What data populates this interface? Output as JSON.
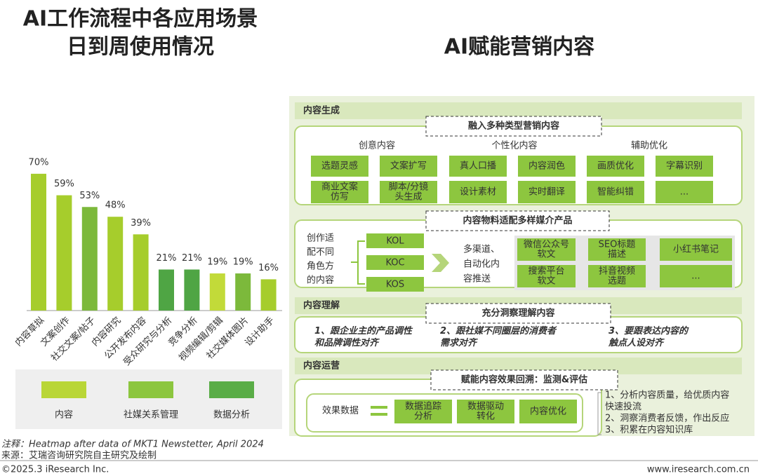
{
  "chart_data": {
    "type": "bar",
    "title": [
      "AI工作流程中各应用场景",
      "日到周使用情况"
    ],
    "categories": [
      "内容草拟",
      "文案创作",
      "社交文案/帖子",
      "内容研究",
      "公开发布内容",
      "受众研究与分析",
      "竞争分析",
      "视频编辑/剪辑",
      "社交媒体图片",
      "设计助手"
    ],
    "values": [
      70,
      59,
      53,
      48,
      39,
      21,
      21,
      19,
      19,
      16
    ],
    "value_labels": [
      "70%",
      "59%",
      "53%",
      "48%",
      "39%",
      "21%",
      "21%",
      "19%",
      "19%",
      "16%"
    ],
    "colors": [
      "#a6cd2c",
      "#a6cd2c",
      "#7cb93b",
      "#a6cd2c",
      "#a6cd2c",
      "#4fa544",
      "#4fa544",
      "#c2da39",
      "#7cb93b",
      "#a6cd2c"
    ],
    "ylim": [
      0,
      80
    ],
    "legend": [
      {
        "name": "内容",
        "color": "#b9d637"
      },
      {
        "name": "社媒关系管理",
        "color": "#8cc63f"
      },
      {
        "name": "数据分析",
        "color": "#5aad47"
      }
    ],
    "note": "注释：Heatmap after data of MKT1 Newstetter, April 2024",
    "source": "来源：艾瑞咨询研究院自主研究及绘制"
  },
  "diagram": {
    "title": "AI赋能营销内容",
    "generation": {
      "header": "内容生成",
      "callout": "融入多种类型营销内容",
      "columns": [
        "创意内容",
        "个性化内容",
        "辅助优化"
      ],
      "tags": [
        [
          "选题灵感"
        ],
        [
          "文案扩写"
        ],
        [
          "真人口播"
        ],
        [
          "内容润色"
        ],
        [
          "画质优化"
        ],
        [
          "字幕识别"
        ],
        [
          "商业文案",
          "仿写"
        ],
        [
          "脚本/分镜",
          "头生成"
        ],
        [
          "设计素材"
        ],
        [
          "实时翻译"
        ],
        [
          "智能纠错"
        ],
        [
          "..."
        ]
      ]
    },
    "adaptation": {
      "callout": "内容物料适配多样媒介产品",
      "creator": [
        "创作适",
        "配不同",
        "角色方",
        "的内容"
      ],
      "roles": [
        "KOL",
        "KOC",
        "KOS"
      ],
      "push": [
        "多渠道、",
        "自动化内",
        "容推送"
      ],
      "products": [
        [
          "微信公众号",
          "软文"
        ],
        [
          "SEO标题",
          "描述"
        ],
        [
          "小红书笔记"
        ],
        [
          "搜索平台",
          "软文"
        ],
        [
          "抖音视频",
          "选题"
        ],
        [
          "..."
        ]
      ]
    },
    "understanding": {
      "header": "内容理解",
      "callout": "充分洞察理解内容",
      "points": [
        [
          "1、跟企业主的产品调性",
          "和品牌调性对齐"
        ],
        [
          "2、跟社媒不同圈层的消费者",
          "需求对齐"
        ],
        [
          "3、要跟表达内容的",
          "触点人设对齐"
        ]
      ]
    },
    "operation": {
      "header": "内容运营",
      "callout": "赋能内容效果回溯：监测&评估",
      "metric": "效果数据",
      "steps": [
        [
          "数据追踪",
          "分析"
        ],
        [
          "数据驱动",
          "转化"
        ],
        [
          "内容优化"
        ]
      ],
      "notes": [
        "1、分析内容质量，给优质内容",
        "快速投流",
        "2、洞察消费者反馈，作出反应",
        "3、积累在内容知识库"
      ]
    }
  },
  "footer": {
    "copyright": "©2025.3 iResearch Inc.",
    "url": "www.iresearch.com.cn"
  }
}
